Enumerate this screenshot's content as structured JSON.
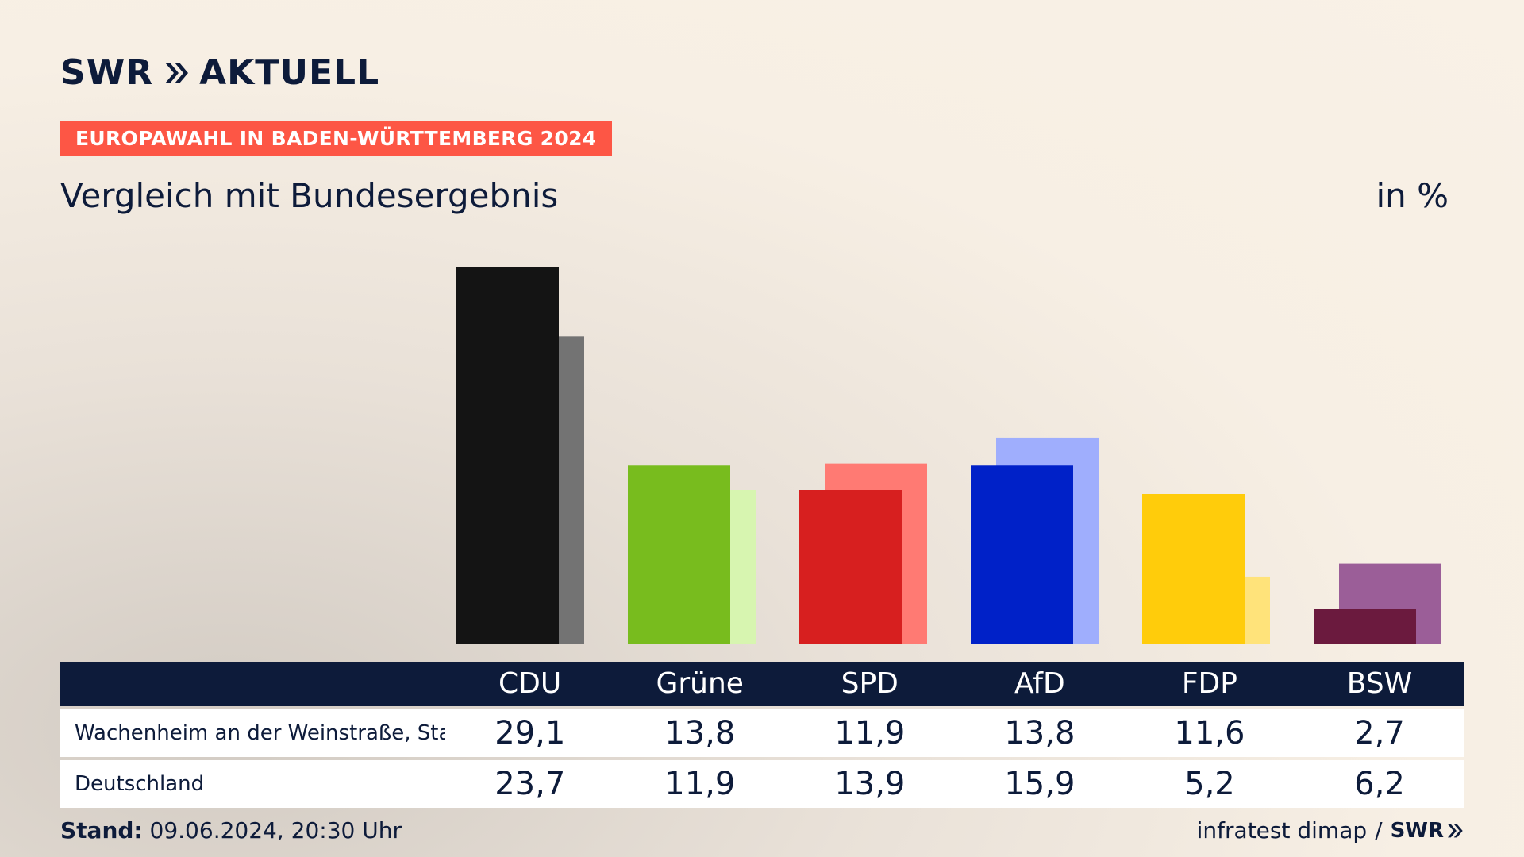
{
  "header": {
    "logo_text_left": "SWR",
    "logo_text_right": "AKTUELL",
    "badge": "EUROPAWAHL IN BADEN-WÜRTTEMBERG 2024",
    "subtitle": "Vergleich mit Bundesergebnis",
    "unit": "in %"
  },
  "chart_data": {
    "type": "bar",
    "categories": [
      "CDU",
      "Grüne",
      "SPD",
      "AfD",
      "FDP",
      "BSW"
    ],
    "series": [
      {
        "name": "Wachenheim an der Weinstraße, Stadt",
        "values": [
          29.1,
          13.8,
          11.9,
          13.8,
          11.6,
          2.7
        ],
        "colors": [
          "#141414",
          "#78bc1e",
          "#d71f1f",
          "#0021c8",
          "#ffcc0b",
          "#6b1a3e"
        ]
      },
      {
        "name": "Deutschland",
        "values": [
          23.7,
          11.9,
          13.9,
          15.9,
          5.2,
          6.2
        ],
        "colors": [
          "#737373",
          "#d7f5b0",
          "#ff7a73",
          "#9faefd",
          "#ffe37a",
          "#9b5e98"
        ]
      }
    ],
    "ylim": [
      0,
      29.1
    ]
  },
  "table": {
    "headers": [
      "CDU",
      "Grüne",
      "SPD",
      "AfD",
      "FDP",
      "BSW"
    ],
    "rows": [
      {
        "label": "Wachenheim an der Weinstraße, Stadt",
        "values": [
          "29,1",
          "13,8",
          "11,9",
          "13,8",
          "11,6",
          "2,7"
        ]
      },
      {
        "label": "Deutschland",
        "values": [
          "23,7",
          "11,9",
          "13,9",
          "15,9",
          "5,2",
          "6,2"
        ]
      }
    ]
  },
  "footer": {
    "stand_label": "Stand:",
    "stand_value": "09.06.2024, 20:30 Uhr",
    "source": "infratest dimap",
    "separator": "/",
    "source_logo": "SWR"
  }
}
